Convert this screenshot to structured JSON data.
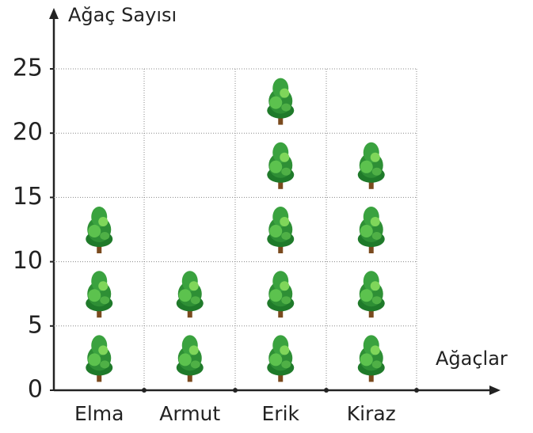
{
  "chart_data": {
    "type": "pictograph",
    "y_label": "Ağaç Sayısı",
    "x_label": "Ağaçlar",
    "categories": [
      "Elma",
      "Armut",
      "Erik",
      "Kiraz"
    ],
    "values": [
      15,
      10,
      25,
      20
    ],
    "ylim": [
      0,
      25
    ],
    "yticks": [
      0,
      5,
      10,
      15,
      20,
      25
    ],
    "grid": true
  }
}
